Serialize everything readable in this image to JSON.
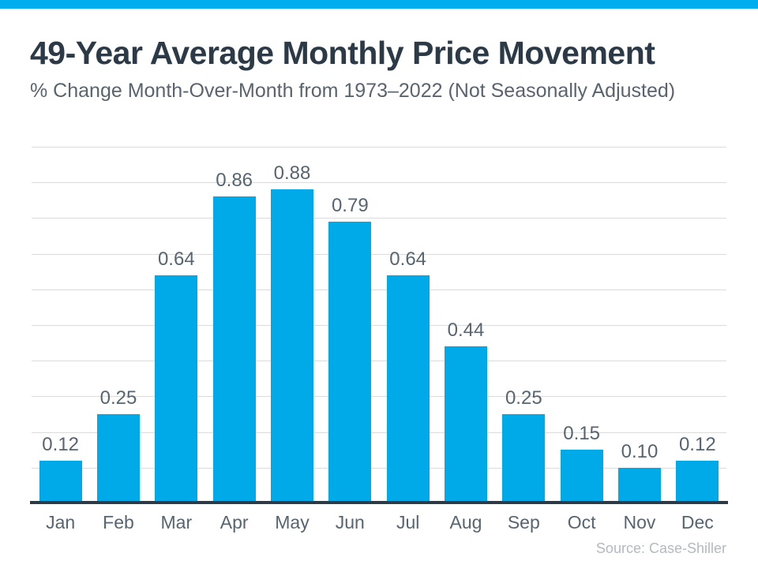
{
  "page": {
    "source": "Source: Case-Shiller"
  },
  "colors": {
    "accent-strip": "#00AEEF",
    "bar": "#00A9E8",
    "title-text": "#2C3A47",
    "subtitle-text": "#5A646E",
    "label-text": "#56656F",
    "grid-line": "#DBDBDB",
    "axis-line": "#2C3A47",
    "source-text": "#B2BAC2"
  },
  "chart_data": {
    "type": "bar",
    "title": "49-Year Average Monthly Price Movement",
    "subtitle": "% Change Month-Over-Month from 1973–2022 (Not Seasonally Adjusted)",
    "categories": [
      "Jan",
      "Feb",
      "Mar",
      "Apr",
      "May",
      "Jun",
      "Jul",
      "Aug",
      "Sep",
      "Oct",
      "Nov",
      "Dec"
    ],
    "values": [
      0.12,
      0.25,
      0.64,
      0.86,
      0.88,
      0.79,
      0.64,
      0.44,
      0.25,
      0.15,
      0.1,
      0.12
    ],
    "value_label_decimals": 2,
    "xlabel": "",
    "ylabel": "",
    "ylim": [
      0,
      1.0
    ],
    "grid_step": 0.1,
    "grid": true,
    "legend": false,
    "y_tick_labels_visible": false,
    "source": "Source: Case-Shiller"
  }
}
